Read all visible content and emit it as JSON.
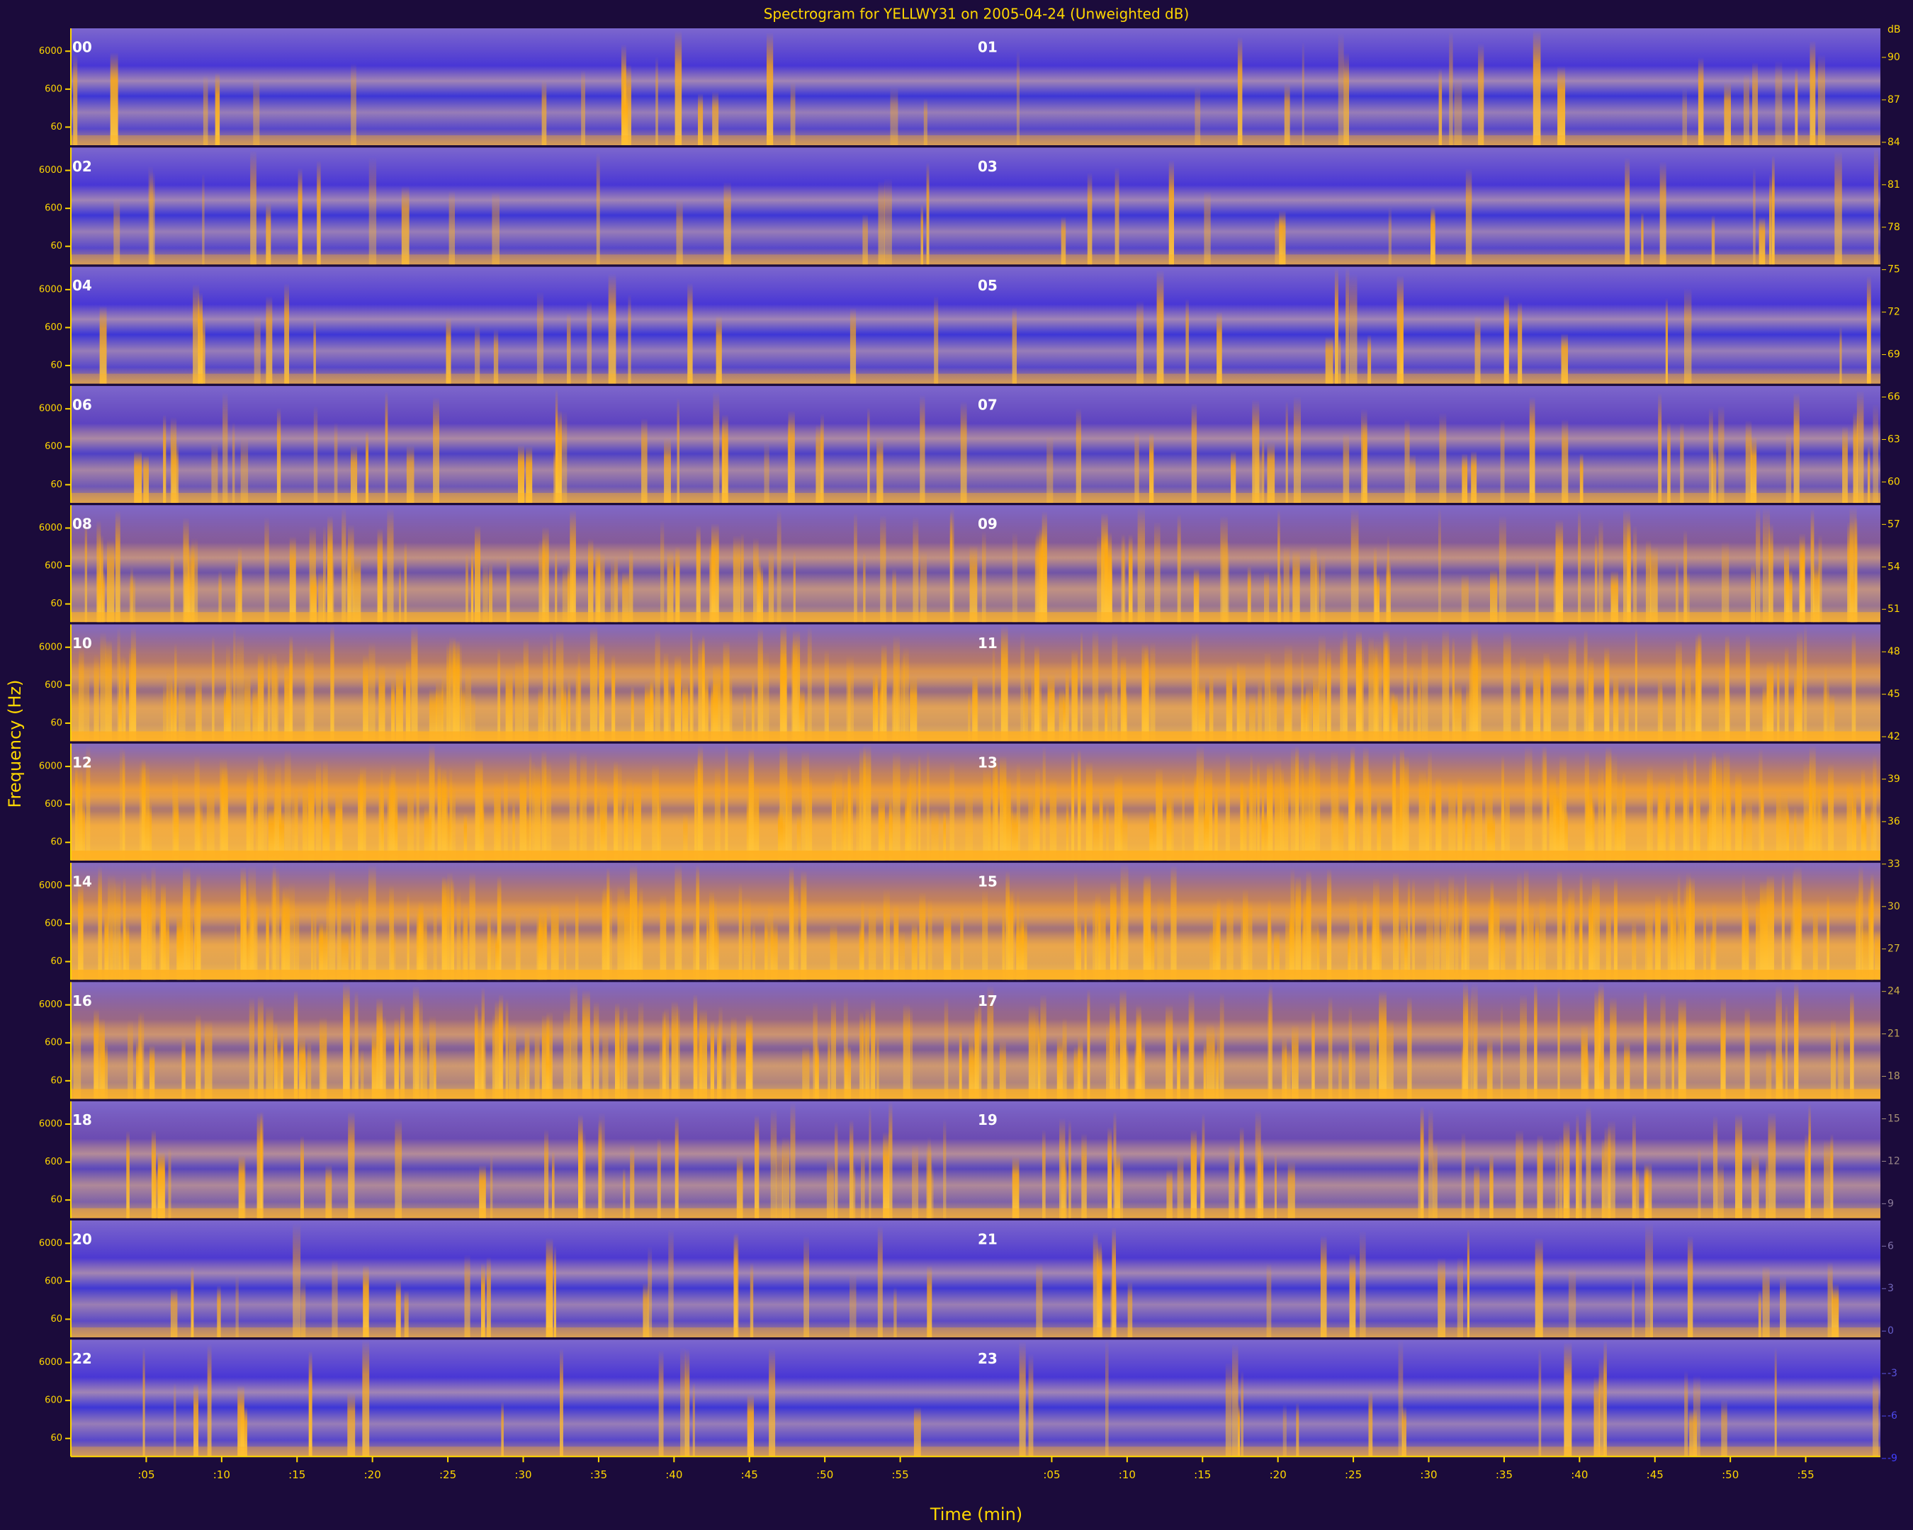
{
  "chart_data": {
    "type": "spectrogram",
    "title": "Spectrogram for YELLWY31 on 2005-04-24 (Unweighted dB)",
    "x_label": "Time (min)",
    "y_label": "Frequency (Hz)",
    "hours": [
      "00",
      "01",
      "02",
      "03",
      "04",
      "05",
      "06",
      "07",
      "08",
      "09",
      "10",
      "11",
      "12",
      "13",
      "14",
      "15",
      "16",
      "17",
      "18",
      "19",
      "20",
      "21",
      "22",
      "23"
    ],
    "xlim": [
      0,
      60
    ],
    "xticks": [
      {
        "value": 5,
        "label": ":05"
      },
      {
        "value": 10,
        "label": ":10"
      },
      {
        "value": 15,
        "label": ":15"
      },
      {
        "value": 20,
        "label": ":20"
      },
      {
        "value": 25,
        "label": ":25"
      },
      {
        "value": 30,
        "label": ":30"
      },
      {
        "value": 35,
        "label": ":35"
      },
      {
        "value": 40,
        "label": ":40"
      },
      {
        "value": 45,
        "label": ":45"
      },
      {
        "value": 50,
        "label": ":50"
      },
      {
        "value": 55,
        "label": ":55"
      }
    ],
    "ylim": [
      20,
      24000
    ],
    "yticks": [
      60,
      600,
      6000
    ],
    "log_y": true,
    "colorbar": {
      "label": "dB",
      "lim": [
        -9,
        90
      ],
      "ticks": [
        90,
        87,
        84,
        81,
        78,
        75,
        72,
        69,
        66,
        63,
        60,
        57,
        54,
        51,
        48,
        45,
        42,
        39,
        36,
        33,
        30,
        27,
        24,
        21,
        18,
        15,
        12,
        9,
        6,
        3,
        0,
        -3,
        -6,
        -9
      ]
    }
  }
}
